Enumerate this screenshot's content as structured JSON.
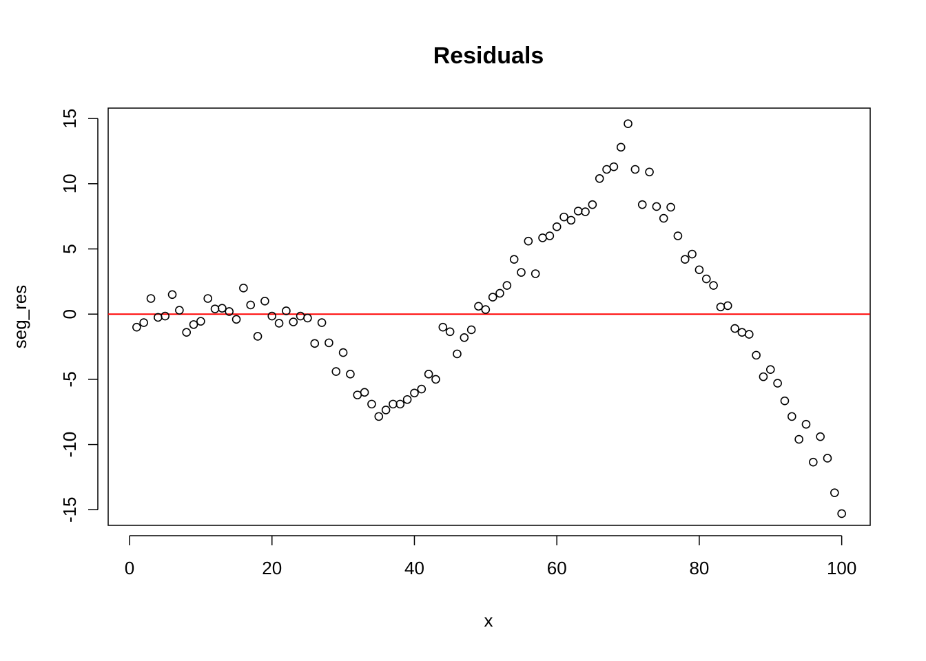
{
  "chart_data": {
    "type": "scatter",
    "title": "Residuals",
    "xlabel": "x",
    "ylabel": "seg_res",
    "xlim": [
      -3,
      104
    ],
    "ylim": [
      -16.2,
      15.8
    ],
    "xticks": [
      0,
      20,
      40,
      60,
      80,
      100
    ],
    "yticks": [
      -15,
      -10,
      -5,
      0,
      5,
      10,
      15
    ],
    "xtick_labels": [
      "0",
      "20",
      "40",
      "60",
      "80",
      "100"
    ],
    "ytick_labels": [
      "-15",
      "-10",
      "-5",
      "0",
      "5",
      "10",
      "15"
    ],
    "grid": false,
    "reference_line": {
      "y": 0,
      "color": "#ff0000"
    },
    "point_color": "#000000",
    "x": [
      1,
      2,
      3,
      4,
      5,
      6,
      7,
      8,
      9,
      10,
      11,
      12,
      13,
      14,
      15,
      16,
      17,
      18,
      19,
      20,
      21,
      22,
      23,
      24,
      25,
      26,
      27,
      28,
      29,
      30,
      31,
      32,
      33,
      34,
      35,
      36,
      37,
      38,
      39,
      40,
      41,
      42,
      43,
      44,
      45,
      46,
      47,
      48,
      49,
      50,
      51,
      52,
      53,
      54,
      55,
      56,
      57,
      58,
      59,
      60,
      61,
      62,
      63,
      64,
      65,
      66,
      67,
      68,
      69,
      70,
      71,
      72,
      73,
      74,
      75,
      76,
      77,
      78,
      79,
      80,
      81,
      82,
      83,
      84,
      85,
      86,
      87,
      88,
      89,
      90,
      91,
      92,
      93,
      94,
      95,
      96,
      97,
      98,
      99,
      100
    ],
    "y": [
      -1.0,
      -0.65,
      1.2,
      -0.25,
      -0.15,
      1.5,
      0.3,
      -1.4,
      -0.8,
      -0.55,
      1.2,
      0.4,
      0.45,
      0.2,
      -0.4,
      2.0,
      0.7,
      -1.7,
      1.0,
      -0.15,
      -0.7,
      0.25,
      -0.6,
      -0.15,
      -0.3,
      -2.25,
      -0.65,
      -2.2,
      -4.4,
      -2.95,
      -4.6,
      -6.2,
      -6.0,
      -6.9,
      -7.85,
      -7.35,
      -6.9,
      -6.9,
      -6.55,
      -6.05,
      -5.75,
      -4.6,
      -5.0,
      -1.0,
      -1.35,
      -3.05,
      -1.8,
      -1.2,
      0.6,
      0.35,
      1.3,
      1.6,
      2.2,
      4.2,
      3.2,
      5.6,
      3.1,
      5.85,
      6.0,
      6.7,
      7.45,
      7.2,
      7.9,
      7.85,
      8.4,
      10.4,
      11.1,
      11.3,
      12.8,
      14.6,
      11.1,
      8.4,
      10.9,
      8.25,
      7.35,
      8.2,
      6.0,
      4.2,
      4.6,
      3.4,
      2.7,
      2.2,
      0.55,
      0.65,
      -1.1,
      -1.4,
      -1.55,
      -3.15,
      -4.8,
      -4.25,
      -5.3,
      -6.65,
      -7.85,
      -9.6,
      -8.45,
      -11.35,
      -9.4,
      -11.05,
      -13.7,
      -15.3
    ]
  }
}
